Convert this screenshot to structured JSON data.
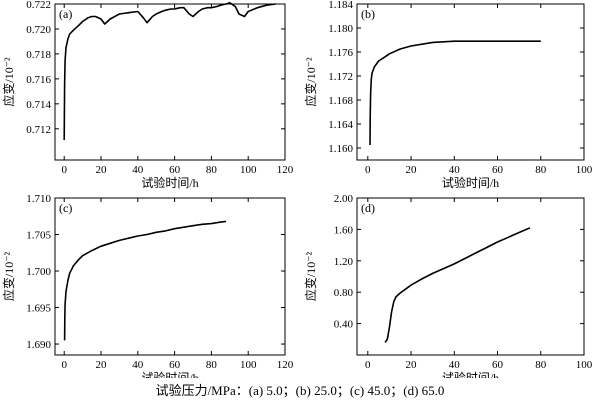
{
  "caption": "试验压力/MPa：(a) 5.0；(b) 25.0；(c) 45.0；(d) 65.0",
  "chart_data": [
    {
      "type": "line",
      "panel_label": "(a)",
      "xlabel": "试验时间/h",
      "ylabel": "应变/10⁻²",
      "xlim": [
        -5,
        120
      ],
      "ylim": [
        0.7095,
        0.722
      ],
      "xticks": [
        0,
        20,
        40,
        60,
        80,
        100,
        120
      ],
      "yticks": [
        0.712,
        0.714,
        0.716,
        0.718,
        0.72,
        0.722
      ],
      "xtick_labels": [
        "0",
        "20",
        "40",
        "60",
        "80",
        "100",
        "120"
      ],
      "ytick_labels": [
        "0.712",
        "0.714",
        "0.716",
        "0.718",
        "0.720",
        "0.722"
      ],
      "series": [
        {
          "x": [
            0,
            0.2,
            0.5,
            1,
            2,
            3,
            5,
            8,
            10,
            13,
            15,
            17,
            20,
            22,
            25,
            30,
            35,
            40,
            43,
            45,
            48,
            50,
            53,
            55,
            58,
            60,
            63,
            65,
            68,
            70,
            73,
            75,
            78,
            80,
            83,
            85,
            88,
            90,
            93,
            95,
            98,
            100,
            105,
            110,
            115
          ],
          "y": [
            0.7111,
            0.7155,
            0.7175,
            0.7185,
            0.7192,
            0.7196,
            0.7199,
            0.7203,
            0.7206,
            0.7209,
            0.721,
            0.721,
            0.7208,
            0.7204,
            0.7208,
            0.7212,
            0.7213,
            0.7214,
            0.7209,
            0.7205,
            0.721,
            0.7212,
            0.7214,
            0.7215,
            0.7216,
            0.7216,
            0.7217,
            0.7217,
            0.7212,
            0.721,
            0.7214,
            0.7216,
            0.7217,
            0.7217,
            0.7218,
            0.7219,
            0.722,
            0.7221,
            0.7218,
            0.7212,
            0.721,
            0.7214,
            0.7217,
            0.7219,
            0.722
          ]
        }
      ]
    },
    {
      "type": "line",
      "panel_label": "(b)",
      "xlabel": "试验时间/h",
      "ylabel": "应变/10⁻²",
      "xlim": [
        -5,
        100
      ],
      "ylim": [
        1.158,
        1.184
      ],
      "xticks": [
        0,
        20,
        40,
        60,
        80,
        100
      ],
      "yticks": [
        1.16,
        1.164,
        1.168,
        1.172,
        1.176,
        1.18,
        1.184
      ],
      "xtick_labels": [
        "0",
        "20",
        "40",
        "60",
        "80",
        "100"
      ],
      "ytick_labels": [
        "1.160",
        "1.164",
        "1.168",
        "1.172",
        "1.176",
        "1.180",
        "1.184"
      ],
      "series": [
        {
          "x": [
            1,
            1.1,
            1.3,
            1.6,
            2,
            3,
            5,
            8,
            10,
            15,
            20,
            25,
            30,
            35,
            40,
            50,
            60,
            70,
            80
          ],
          "y": [
            1.1605,
            1.165,
            1.169,
            1.1715,
            1.1725,
            1.1735,
            1.1745,
            1.1752,
            1.1757,
            1.1765,
            1.177,
            1.1773,
            1.1776,
            1.1777,
            1.1778,
            1.1778,
            1.1778,
            1.1778,
            1.1778
          ]
        }
      ]
    },
    {
      "type": "line",
      "panel_label": "(c)",
      "xlabel": "试验时间/h",
      "ylabel": "应变/10⁻²",
      "xlim": [
        -5,
        120
      ],
      "ylim": [
        1.6885,
        1.71
      ],
      "xticks": [
        0,
        20,
        40,
        60,
        80,
        100,
        120
      ],
      "yticks": [
        1.69,
        1.695,
        1.7,
        1.705,
        1.71
      ],
      "xtick_labels": [
        "0",
        "20",
        "40",
        "60",
        "80",
        "100",
        "120"
      ],
      "ytick_labels": [
        "1.690",
        "1.695",
        "1.700",
        "1.705",
        "1.710"
      ],
      "series": [
        {
          "x": [
            0.2,
            0.3,
            0.5,
            1,
            2,
            3,
            5,
            8,
            10,
            15,
            20,
            25,
            30,
            35,
            40,
            45,
            50,
            55,
            60,
            65,
            70,
            75,
            80,
            85,
            88
          ],
          "y": [
            1.6905,
            1.6935,
            1.6955,
            1.6972,
            1.6987,
            1.6997,
            1.7007,
            1.7016,
            1.7021,
            1.7028,
            1.7034,
            1.7038,
            1.7042,
            1.7045,
            1.7048,
            1.705,
            1.7053,
            1.7055,
            1.7058,
            1.706,
            1.7062,
            1.7064,
            1.7065,
            1.7067,
            1.7068
          ]
        }
      ]
    },
    {
      "type": "line",
      "panel_label": "(d)",
      "xlabel": "试验时间/h",
      "ylabel": "应变/10⁻²",
      "xlim": [
        -5,
        100
      ],
      "ylim": [
        0,
        2.0
      ],
      "xticks": [
        0,
        20,
        40,
        60,
        80,
        100
      ],
      "yticks": [
        0.4,
        0.8,
        1.2,
        1.6,
        2.0
      ],
      "xtick_labels": [
        "0",
        "20",
        "40",
        "60",
        "80",
        "100"
      ],
      "ytick_labels": [
        "0.40",
        "0.80",
        "1.20",
        "1.60",
        "2.00"
      ],
      "series": [
        {
          "x": [
            8,
            9,
            10,
            11,
            12,
            13,
            15,
            18,
            20,
            25,
            30,
            35,
            40,
            45,
            50,
            55,
            60,
            65,
            70,
            75
          ],
          "y": [
            0.16,
            0.2,
            0.35,
            0.55,
            0.68,
            0.74,
            0.79,
            0.85,
            0.89,
            0.97,
            1.04,
            1.1,
            1.16,
            1.23,
            1.3,
            1.37,
            1.44,
            1.5,
            1.56,
            1.62
          ]
        }
      ]
    }
  ]
}
